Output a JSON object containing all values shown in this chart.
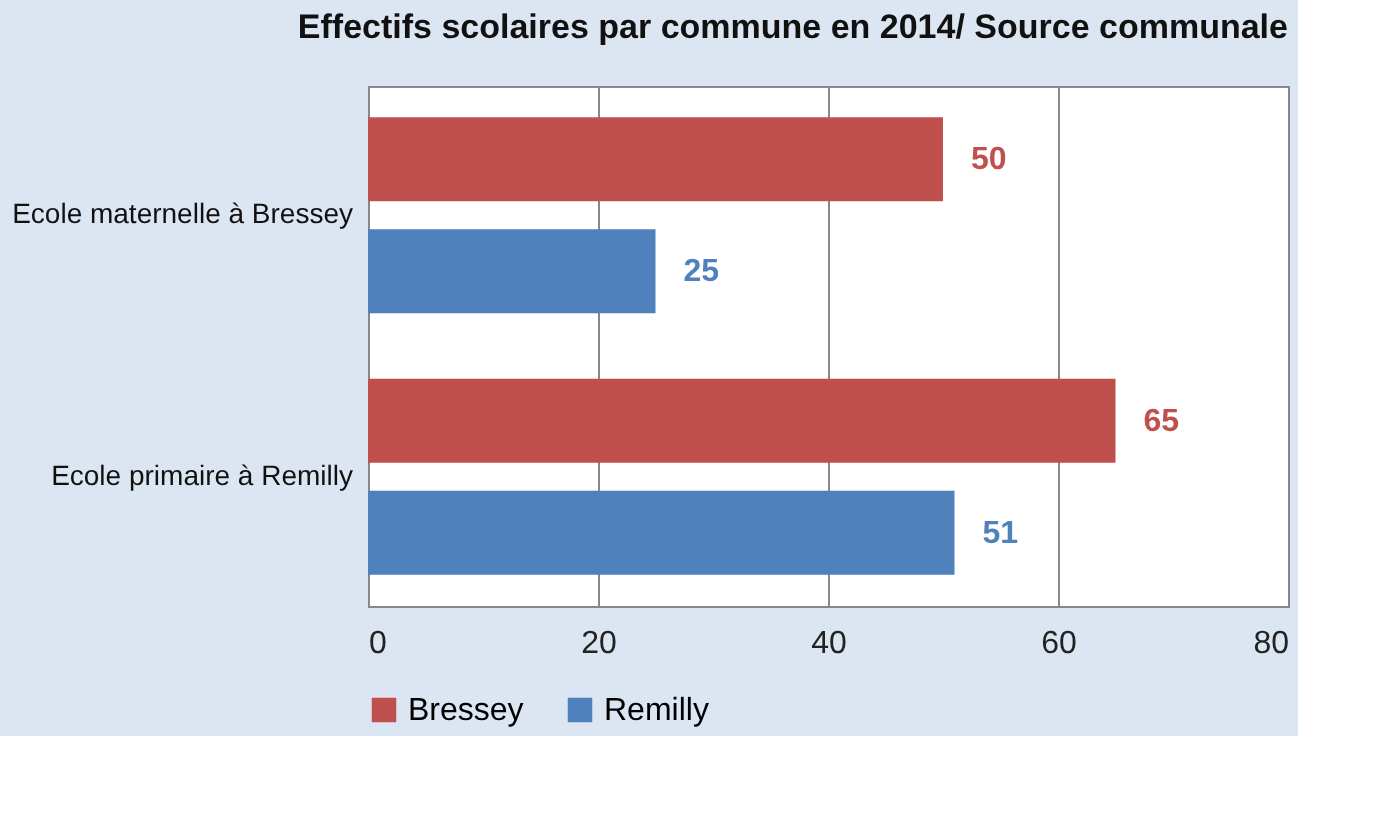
{
  "chart_data": {
    "type": "bar",
    "orientation": "horizontal",
    "title": "Effectifs scolaires par commune en 2014/ Source communale",
    "categories": [
      "Ecole maternelle à Bressey",
      "Ecole primaire à Remilly"
    ],
    "series": [
      {
        "name": "Bressey",
        "color": "#c0504d",
        "values": [
          50,
          65
        ]
      },
      {
        "name": "Remilly",
        "color": "#4f81bd",
        "values": [
          25,
          51
        ]
      }
    ],
    "xlim": [
      0,
      80
    ],
    "xticks": [
      0,
      20,
      40,
      60,
      80
    ],
    "grid": "x",
    "legend": "bottom",
    "data_labels": true
  }
}
